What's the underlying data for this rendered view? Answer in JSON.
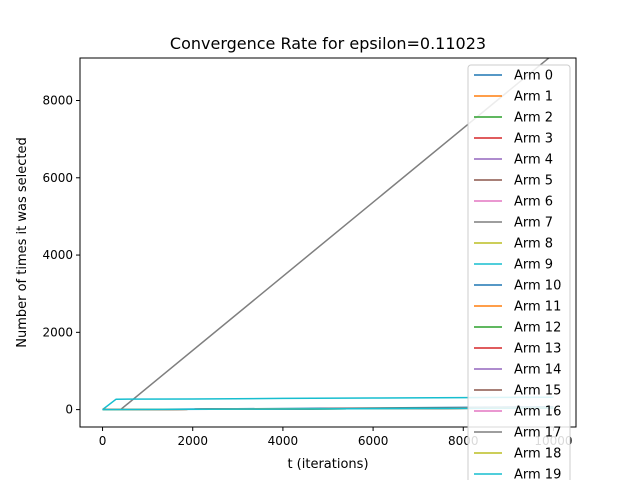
{
  "chart_data": {
    "type": "line",
    "title": "Convergence Rate for epsilon=0.11023",
    "xlabel": "t (iterations)",
    "ylabel": "Number of times it was selected",
    "xlim": [
      -500,
      10500
    ],
    "ylim": [
      -450,
      9100
    ],
    "x_ticks": [
      0,
      2000,
      4000,
      6000,
      8000,
      10000
    ],
    "y_ticks": [
      0,
      2000,
      4000,
      6000,
      8000
    ],
    "grid": false,
    "legend_position": "right (overflowing the axes)",
    "series": [
      {
        "name": "Arm 0",
        "color": "#1f77b4",
        "x": [
          0,
          10000
        ],
        "y": [
          0,
          40
        ]
      },
      {
        "name": "Arm 1",
        "color": "#ff7f0e",
        "x": [
          0,
          10000
        ],
        "y": [
          0,
          45
        ]
      },
      {
        "name": "Arm 2",
        "color": "#2ca02c",
        "x": [
          0,
          10000
        ],
        "y": [
          0,
          42
        ]
      },
      {
        "name": "Arm 3",
        "color": "#d62728",
        "x": [
          0,
          10000
        ],
        "y": [
          0,
          48
        ]
      },
      {
        "name": "Arm 4",
        "color": "#9467bd",
        "x": [
          0,
          10000
        ],
        "y": [
          0,
          50
        ]
      },
      {
        "name": "Arm 5",
        "color": "#8c564b",
        "x": [
          0,
          10000
        ],
        "y": [
          0,
          44
        ]
      },
      {
        "name": "Arm 6",
        "color": "#e377c2",
        "x": [
          0,
          10000
        ],
        "y": [
          0,
          46
        ]
      },
      {
        "name": "Arm 7",
        "color": "#7f7f7f",
        "x": [
          0,
          400,
          10000
        ],
        "y": [
          0,
          0,
          9200
        ]
      },
      {
        "name": "Arm 8",
        "color": "#bcbd22",
        "x": [
          0,
          10000
        ],
        "y": [
          0,
          43
        ]
      },
      {
        "name": "Arm 9",
        "color": "#17becf",
        "x": [
          0,
          300,
          2000,
          4000,
          6000,
          8000,
          10000
        ],
        "y": [
          0,
          270,
          275,
          290,
          300,
          310,
          320
        ]
      },
      {
        "name": "Arm 10",
        "color": "#1f77b4",
        "x": [
          0,
          10000
        ],
        "y": [
          0,
          70
        ]
      },
      {
        "name": "Arm 11",
        "color": "#ff7f0e",
        "x": [
          0,
          10000
        ],
        "y": [
          0,
          47
        ]
      },
      {
        "name": "Arm 12",
        "color": "#2ca02c",
        "x": [
          0,
          10000
        ],
        "y": [
          0,
          41
        ]
      },
      {
        "name": "Arm 13",
        "color": "#d62728",
        "x": [
          0,
          10000
        ],
        "y": [
          0,
          49
        ]
      },
      {
        "name": "Arm 14",
        "color": "#9467bd",
        "x": [
          0,
          10000
        ],
        "y": [
          0,
          45
        ]
      },
      {
        "name": "Arm 15",
        "color": "#8c564b",
        "x": [
          0,
          10000
        ],
        "y": [
          0,
          42
        ]
      },
      {
        "name": "Arm 16",
        "color": "#e377c2",
        "x": [
          0,
          10000
        ],
        "y": [
          0,
          47
        ]
      },
      {
        "name": "Arm 17",
        "color": "#7f7f7f",
        "x": [
          0,
          10000
        ],
        "y": [
          0,
          44
        ]
      },
      {
        "name": "Arm 18",
        "color": "#bcbd22",
        "x": [
          0,
          10000
        ],
        "y": [
          0,
          46
        ]
      },
      {
        "name": "Arm 19",
        "color": "#17becf",
        "x": [
          0,
          10000
        ],
        "y": [
          0,
          43
        ]
      }
    ]
  }
}
